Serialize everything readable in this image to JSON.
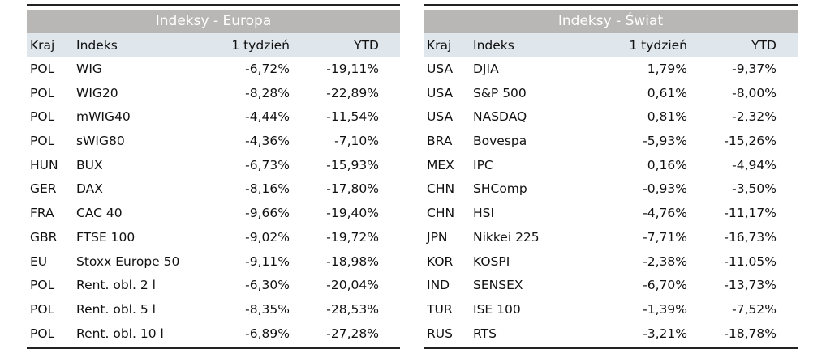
{
  "europe": {
    "title": "Indeksy - Europa",
    "headers": {
      "kraj": "Kraj",
      "indeks": "Indeks",
      "week": "1 tydzień",
      "ytd": "YTD"
    },
    "rows": [
      {
        "kraj": "POL",
        "indeks": "WIG",
        "week": "-6,72%",
        "ytd": "-19,11%"
      },
      {
        "kraj": "POL",
        "indeks": "WIG20",
        "week": "-8,28%",
        "ytd": "-22,89%"
      },
      {
        "kraj": "POL",
        "indeks": "mWIG40",
        "week": "-4,44%",
        "ytd": "-11,54%"
      },
      {
        "kraj": "POL",
        "indeks": "sWIG80",
        "week": "-4,36%",
        "ytd": "-7,10%"
      },
      {
        "kraj": "HUN",
        "indeks": "BUX",
        "week": "-6,73%",
        "ytd": "-15,93%"
      },
      {
        "kraj": "GER",
        "indeks": "DAX",
        "week": "-8,16%",
        "ytd": "-17,80%"
      },
      {
        "kraj": "FRA",
        "indeks": "CAC 40",
        "week": "-9,66%",
        "ytd": "-19,40%"
      },
      {
        "kraj": "GBR",
        "indeks": "FTSE 100",
        "week": "-9,02%",
        "ytd": "-19,72%"
      },
      {
        "kraj": "EU",
        "indeks": "Stoxx Europe 50",
        "week": "-9,11%",
        "ytd": "-18,98%"
      },
      {
        "kraj": "POL",
        "indeks": "Rent. obl. 2 l",
        "week": "-6,30%",
        "ytd": "-20,04%"
      },
      {
        "kraj": "POL",
        "indeks": "Rent. obl. 5 l",
        "week": "-8,35%",
        "ytd": "-28,53%"
      },
      {
        "kraj": "POL",
        "indeks": "Rent. obl. 10 l",
        "week": "-6,89%",
        "ytd": "-27,28%"
      }
    ]
  },
  "world": {
    "title": "Indeksy - Świat",
    "headers": {
      "kraj": "Kraj",
      "indeks": "Indeks",
      "week": "1 tydzień",
      "ytd": "YTD"
    },
    "rows": [
      {
        "kraj": "USA",
        "indeks": "DJIA",
        "week": "1,79%",
        "ytd": "-9,37%"
      },
      {
        "kraj": "USA",
        "indeks": "S&P 500",
        "week": "0,61%",
        "ytd": "-8,00%"
      },
      {
        "kraj": "USA",
        "indeks": "NASDAQ",
        "week": "0,81%",
        "ytd": "-2,32%"
      },
      {
        "kraj": "BRA",
        "indeks": "Bovespa",
        "week": "-5,93%",
        "ytd": "-15,26%"
      },
      {
        "kraj": "MEX",
        "indeks": "IPC",
        "week": "0,16%",
        "ytd": "-4,94%"
      },
      {
        "kraj": "CHN",
        "indeks": "SHComp",
        "week": "-0,93%",
        "ytd": "-3,50%"
      },
      {
        "kraj": "CHN",
        "indeks": "HSI",
        "week": "-4,76%",
        "ytd": "-11,17%"
      },
      {
        "kraj": "JPN",
        "indeks": "Nikkei 225",
        "week": "-7,71%",
        "ytd": "-16,73%"
      },
      {
        "kraj": "KOR",
        "indeks": "KOSPI",
        "week": "-2,38%",
        "ytd": "-11,05%"
      },
      {
        "kraj": "IND",
        "indeks": "SENSEX",
        "week": "-6,70%",
        "ytd": "-13,73%"
      },
      {
        "kraj": "TUR",
        "indeks": "ISE 100",
        "week": "-1,39%",
        "ytd": "-7,52%"
      },
      {
        "kraj": "RUS",
        "indeks": "RTS",
        "week": "-3,21%",
        "ytd": "-18,78%"
      }
    ]
  }
}
